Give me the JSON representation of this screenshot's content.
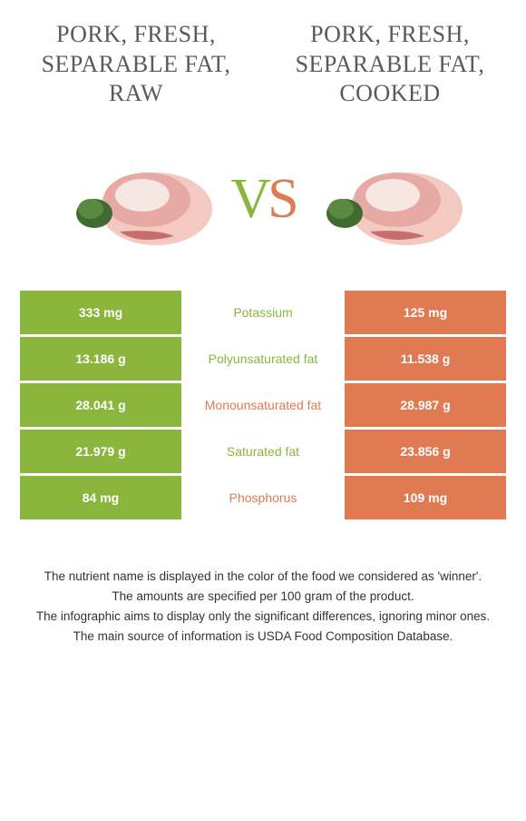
{
  "colors": {
    "green": "#8bb63e",
    "orange": "#e07a52",
    "title_text": "#5a5a5a",
    "cell_text": "#ffffff",
    "footer_text": "#333333",
    "background": "#ffffff"
  },
  "food_left": {
    "title": "Pork, fresh, separable fat, raw"
  },
  "food_right": {
    "title": "Pork, fresh, separable fat, cooked"
  },
  "vs": {
    "v": "V",
    "s": "S"
  },
  "table": {
    "rows": [
      {
        "nutrient": "Potassium",
        "left": "333 mg",
        "right": "125 mg",
        "winner": "left"
      },
      {
        "nutrient": "Polyunsaturated fat",
        "left": "13.186 g",
        "right": "11.538 g",
        "winner": "left"
      },
      {
        "nutrient": "Monounsaturated fat",
        "left": "28.041 g",
        "right": "28.987 g",
        "winner": "right"
      },
      {
        "nutrient": "Saturated fat",
        "left": "21.979 g",
        "right": "23.856 g",
        "winner": "left"
      },
      {
        "nutrient": "Phosphorus",
        "left": "84 mg",
        "right": "109 mg",
        "winner": "right"
      }
    ]
  },
  "footer": {
    "line1": "The nutrient name is displayed in the color of the food we considered as 'winner'.",
    "line2": "The amounts are specified per 100 gram of the product.",
    "line3": "The infographic aims to display only the significant differences, ignoring minor ones.",
    "line4": "The main source of information is USDA Food Composition Database."
  }
}
